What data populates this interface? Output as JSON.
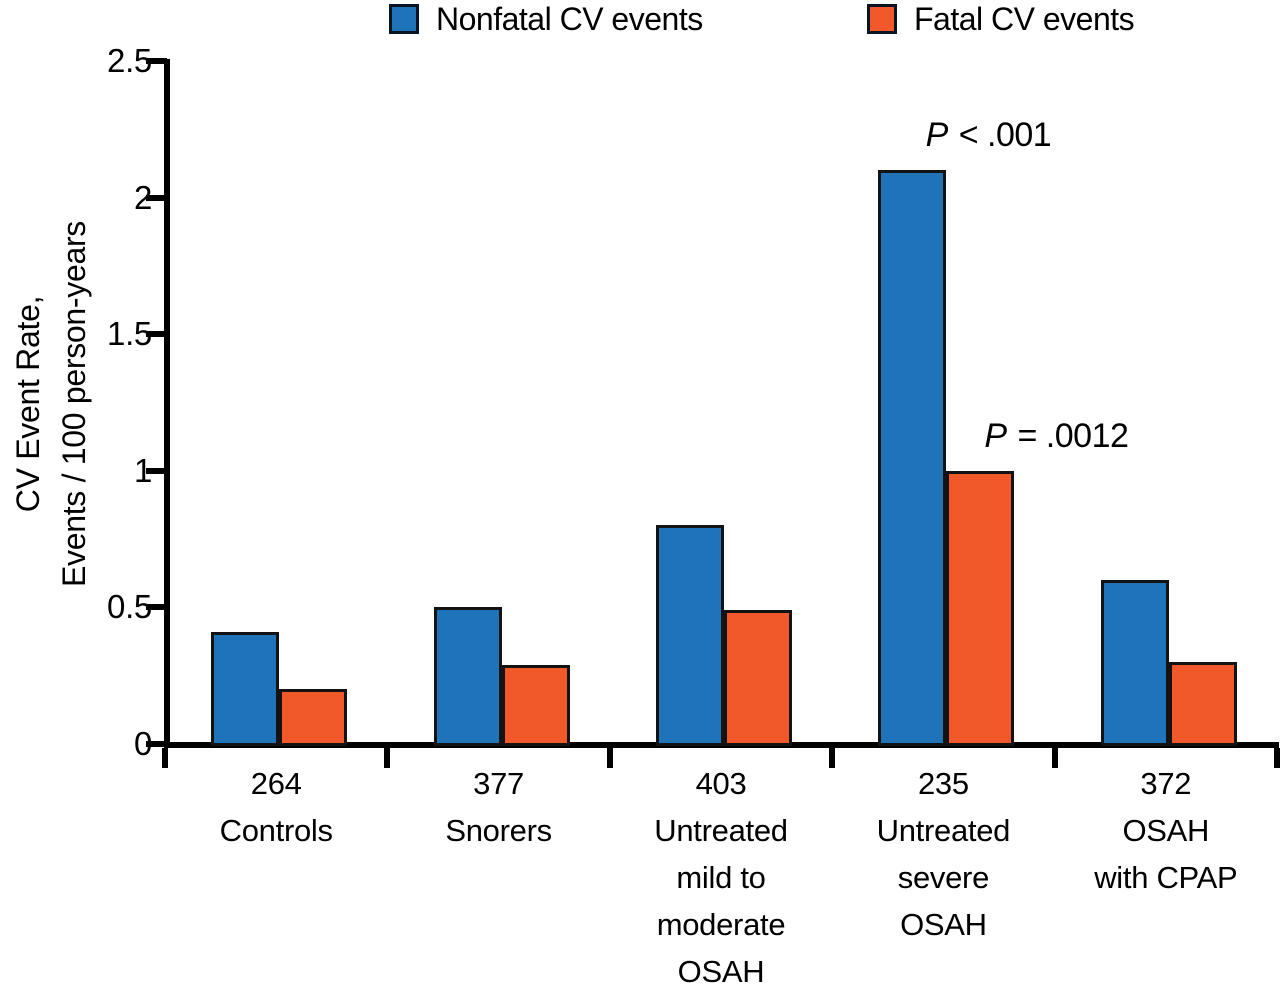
{
  "figure": {
    "background": "#ffffff",
    "axis_color": "#000000",
    "bar_border_color": "#131313"
  },
  "chart_data": {
    "type": "bar",
    "title": "",
    "xlabel": "",
    "ylabel_line1": "CV Event Rate,",
    "ylabel_line2": "Events / 100 person-years",
    "ylim": [
      0,
      2.5
    ],
    "yticks": [
      0,
      0.5,
      1,
      1.5,
      2,
      2.5
    ],
    "ytick_labels": [
      "0",
      "0.5",
      "1",
      "1.5",
      "2",
      "2.5"
    ],
    "grid": false,
    "legend_position": "top",
    "categories": [
      {
        "key": "controls",
        "n": "264",
        "lines": [
          "264",
          "Controls"
        ]
      },
      {
        "key": "snorers",
        "n": "377",
        "lines": [
          "377",
          "Snorers"
        ]
      },
      {
        "key": "mild-moderate-osah",
        "n": "403",
        "lines": [
          "403",
          "Untreated",
          "mild to",
          "moderate",
          "OSAH"
        ]
      },
      {
        "key": "severe-osah",
        "n": "235",
        "lines": [
          "235",
          "Untreated",
          "severe",
          "OSAH"
        ]
      },
      {
        "key": "osah-cpap",
        "n": "372",
        "lines": [
          "372",
          "OSAH",
          "with CPAP"
        ]
      }
    ],
    "series": [
      {
        "key": "nonfatal",
        "name": "Nonfatal CV events",
        "color": "#1F73B8",
        "values": [
          0.41,
          0.5,
          0.8,
          2.1,
          0.6
        ]
      },
      {
        "key": "fatal",
        "name": "Fatal CV events",
        "color": "#F1592A",
        "values": [
          0.2,
          0.29,
          0.49,
          1.0,
          0.3
        ]
      }
    ],
    "annotations": [
      {
        "text": "P < .001",
        "series": 0,
        "group": 3
      },
      {
        "text": "P = .0012",
        "series": 1,
        "group": 3
      }
    ]
  }
}
